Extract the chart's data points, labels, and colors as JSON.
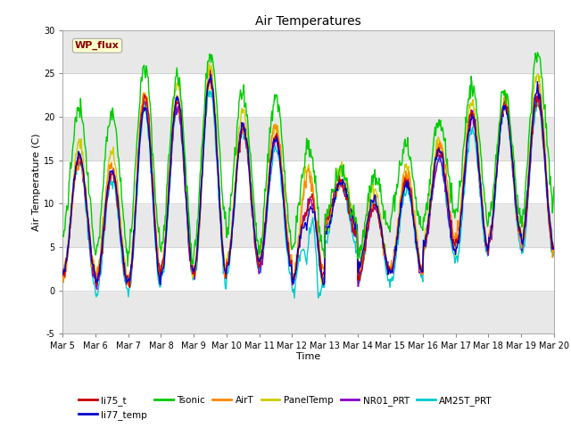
{
  "title": "Air Temperatures",
  "xlabel": "Time",
  "ylabel": "Air Temperature (C)",
  "ylim": [
    -5,
    30
  ],
  "yticks": [
    -5,
    0,
    5,
    10,
    15,
    20,
    25,
    30
  ],
  "date_labels": [
    "Mar 5",
    "Mar 6",
    "Mar 7",
    "Mar 8",
    "Mar 9",
    "Mar 10",
    "Mar 11",
    "Mar 12",
    "Mar 13",
    "Mar 14",
    "Mar 15",
    "Mar 16",
    "Mar 17",
    "Mar 18",
    "Mar 19",
    "Mar 20"
  ],
  "series_colors": {
    "li75_t": "#cc0000",
    "li77_temp": "#0000cc",
    "Tsonic": "#00cc00",
    "AirT": "#ff8800",
    "PanelTemp": "#cccc00",
    "NR01_PRT": "#8800cc",
    "AM25T_PRT": "#00cccc"
  },
  "annotation_text": "WP_flux",
  "annotation_color": "#880000",
  "annotation_bg": "#ffffcc",
  "background_color": "#e8e8e8",
  "stripe_color": "#d0d0d0",
  "num_points": 720,
  "figsize": [
    6.4,
    4.8
  ],
  "dpi": 100
}
